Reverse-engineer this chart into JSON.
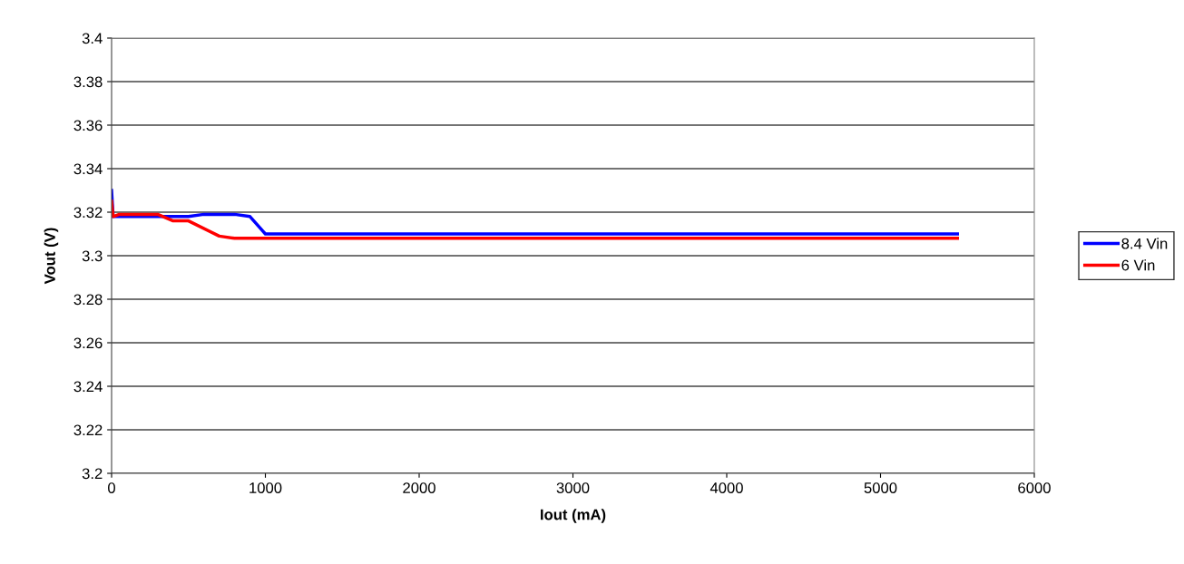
{
  "chart_data": {
    "type": "line",
    "xlabel": "Iout (mA)",
    "ylabel": "Vout (V)",
    "xlim": [
      0,
      6000
    ],
    "xticks": [
      0,
      1000,
      2000,
      3000,
      4000,
      5000,
      6000
    ],
    "ylim": [
      3.2,
      3.4
    ],
    "yticks": [
      3.2,
      3.22,
      3.24,
      3.26,
      3.28,
      3.3,
      3.32,
      3.34,
      3.36,
      3.38,
      3.4
    ],
    "grid": "y",
    "legend": "right",
    "marker": "none",
    "line_style": "solid",
    "series": [
      {
        "name": "8.4 Vin",
        "color": "#0000ff",
        "x": [
          0,
          10,
          100,
          300,
          500,
          600,
          800,
          900,
          1000,
          5000,
          5500
        ],
        "values": [
          3.33,
          3.318,
          3.318,
          3.318,
          3.318,
          3.319,
          3.319,
          3.318,
          3.31,
          3.31,
          3.31
        ]
      },
      {
        "name": "6 Vin",
        "color": "#ff0000",
        "x": [
          0,
          10,
          50,
          100,
          300,
          400,
          500,
          700,
          800,
          1000,
          5000,
          5500
        ],
        "values": [
          3.325,
          3.318,
          3.319,
          3.319,
          3.319,
          3.316,
          3.316,
          3.309,
          3.308,
          3.308,
          3.308,
          3.308
        ]
      }
    ]
  }
}
